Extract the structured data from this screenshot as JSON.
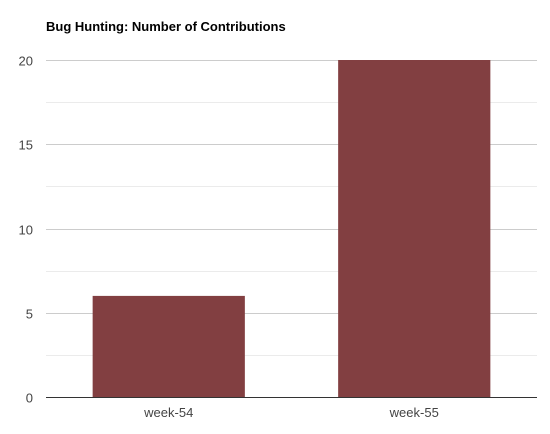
{
  "chart_data": {
    "type": "bar",
    "title": "Bug Hunting: Number of Contributions",
    "xlabel": "",
    "ylabel": "",
    "categories": [
      "week-54",
      "week-55"
    ],
    "values": [
      6,
      20
    ],
    "ylim": [
      0,
      20
    ],
    "yticks": [
      0,
      5,
      10,
      15,
      20
    ],
    "ytick_labels": [
      "0",
      "5",
      "10",
      "15",
      "20"
    ],
    "grid": true,
    "minor_grid": true,
    "legend": "none",
    "colors": {
      "bar": "#823f41",
      "major_grid": "#cccccc",
      "minor_grid": "#ebebeb",
      "axis": "#333333",
      "tick_text": "#444444"
    }
  }
}
